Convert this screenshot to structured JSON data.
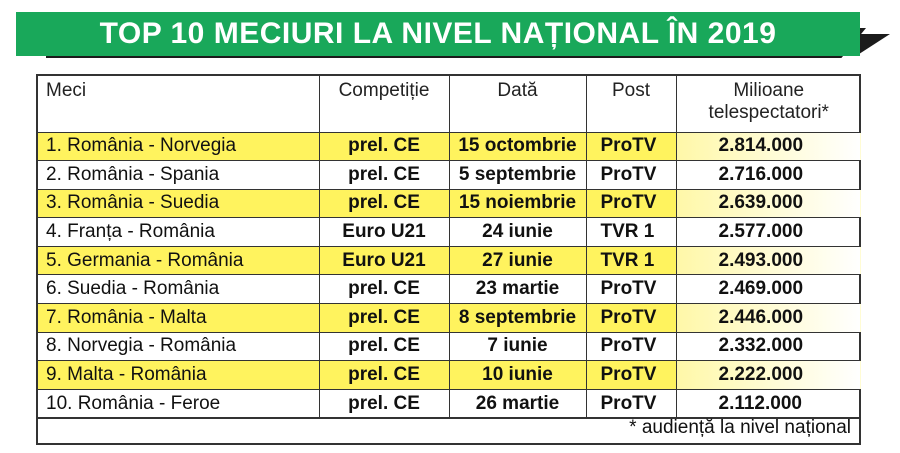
{
  "title": "TOP 10 MECIURI LA NIVEL NAȚIONAL ÎN 2019",
  "table": {
    "headers": {
      "match": "Meci",
      "competition": "Competiție",
      "date": "Dată",
      "post": "Post",
      "viewers_line1": "Milioane",
      "viewers_line2": "telespectatori*"
    },
    "rows": [
      {
        "match": "1. România - Norvegia",
        "competition": "prel. CE",
        "date": "15 octombrie",
        "post": "ProTV",
        "viewers": "2.814.000",
        "highlight": true
      },
      {
        "match": "2. România - Spania",
        "competition": "prel. CE",
        "date": "5 septembrie",
        "post": "ProTV",
        "viewers": "2.716.000",
        "highlight": false
      },
      {
        "match": "3. România - Suedia",
        "competition": "prel. CE",
        "date": "15 noiembrie",
        "post": "ProTV",
        "viewers": "2.639.000",
        "highlight": true
      },
      {
        "match": "4. Franța - România",
        "competition": "Euro U21",
        "date": "24 iunie",
        "post": "TVR 1",
        "viewers": "2.577.000",
        "highlight": false
      },
      {
        "match": "5. Germania - România",
        "competition": "Euro U21",
        "date": "27 iunie",
        "post": "TVR 1",
        "viewers": "2.493.000",
        "highlight": true
      },
      {
        "match": "6. Suedia - România",
        "competition": "prel. CE",
        "date": "23 martie",
        "post": "ProTV",
        "viewers": "2.469.000",
        "highlight": false
      },
      {
        "match": "7. România - Malta",
        "competition": "prel. CE",
        "date": "8 septembrie",
        "post": "ProTV",
        "viewers": "2.446.000",
        "highlight": true
      },
      {
        "match": "8. Norvegia - România",
        "competition": "prel. CE",
        "date": "7 iunie",
        "post": "ProTV",
        "viewers": "2.332.000",
        "highlight": false
      },
      {
        "match": "9. Malta - România",
        "competition": "prel. CE",
        "date": "10 iunie",
        "post": "ProTV",
        "viewers": "2.222.000",
        "highlight": true
      },
      {
        "match": "10. România - Feroe",
        "competition": "prel. CE",
        "date": "26 martie",
        "post": "ProTV",
        "viewers": "2.112.000",
        "highlight": false
      }
    ]
  },
  "footnote": "* audiență la nivel național",
  "colors": {
    "banner_green": "#19a85a",
    "highlight_yellow": "#fff35e"
  }
}
